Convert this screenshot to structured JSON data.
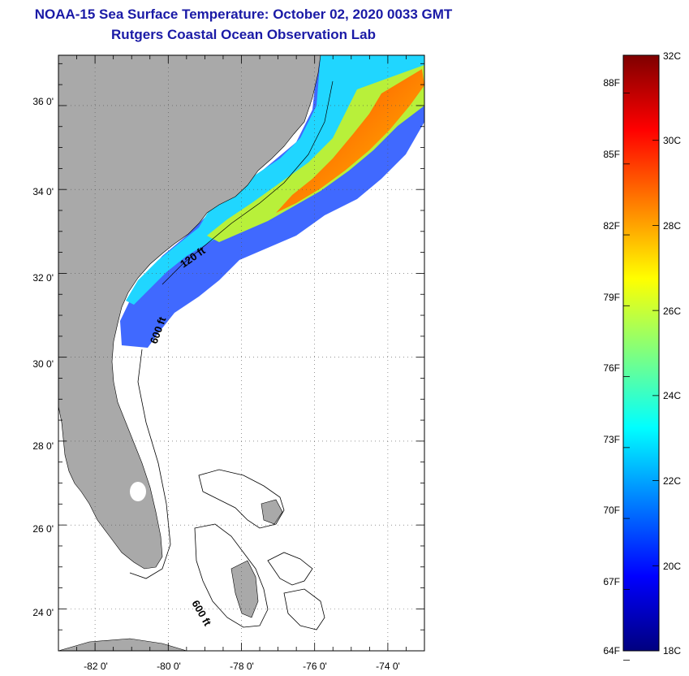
{
  "title": {
    "line1": "NOAA-15 Sea Surface Temperature:  October 02, 2020 0033 GMT",
    "line2": "Rutgers Coastal Ocean Observation Lab"
  },
  "map": {
    "lon_min": -83,
    "lon_max": -73,
    "lat_min": 23,
    "lat_max": 37.2,
    "lon_labels": [
      "-82 0'",
      "-80 0'",
      "-78 0'",
      "-76 0'",
      "-74 0'"
    ],
    "lat_labels": [
      "36 0'",
      "34 0'",
      "32 0'",
      "30 0'",
      "28 0'",
      "26 0'",
      "24 0'"
    ],
    "contour_labels": [
      "120 ft",
      "600 ft",
      "600 ft"
    ],
    "land_color": "#a9a9a9"
  },
  "colorbar": {
    "min_c": 18,
    "max_c": 32,
    "celsius_labels": [
      "32C",
      "30C",
      "28C",
      "26C",
      "24C",
      "22C",
      "20C",
      "18C"
    ],
    "fahrenheit_labels": [
      "88F",
      "85F",
      "82F",
      "79F",
      "76F",
      "73F",
      "70F",
      "67F",
      "64F"
    ],
    "colors": [
      "#00007f",
      "#0000ff",
      "#007fff",
      "#00ffff",
      "#7fff7f",
      "#ffff00",
      "#ff7f00",
      "#ff0000",
      "#7f0000"
    ]
  }
}
